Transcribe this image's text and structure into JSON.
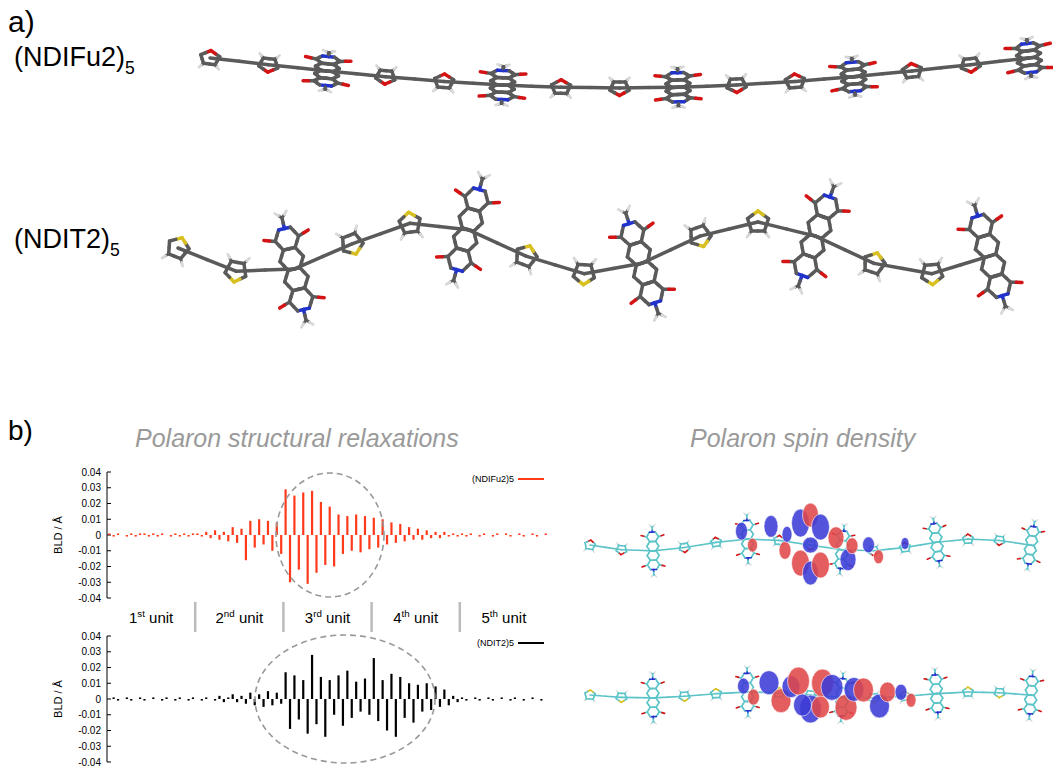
{
  "panel_a": {
    "label": "a)",
    "molecules": [
      {
        "name": "(NDIFu2)5"
      },
      {
        "name": "(NDIT2)5"
      }
    ]
  },
  "panel_b": {
    "label": "b)",
    "left_title": "Polaron structural relaxations",
    "right_title": "Polaron spin density",
    "units": {
      "labels": [
        "1st unit",
        "2nd unit",
        "3rd unit",
        "4th unit",
        "5th unit"
      ],
      "boundaries": [
        19.5,
        39.5,
        59.5,
        79.5
      ]
    }
  },
  "chart_data": [
    {
      "type": "bar",
      "ylabel": "BLD / Å",
      "xlim": [
        -0.5,
        99.5
      ],
      "ylim": [
        -0.04,
        0.04
      ],
      "yticks": [
        -0.04,
        -0.03,
        -0.02,
        -0.01,
        0,
        0.01,
        0.02,
        0.03,
        0.04
      ],
      "grid": false,
      "tick_labels": "y",
      "legend": "top right",
      "series": [
        {
          "name": "(NDIFu2)5",
          "color": "#ff3a1a",
          "x": [
            0,
            1,
            2,
            3,
            4,
            5,
            6,
            7,
            8,
            9,
            10,
            11,
            12,
            13,
            14,
            15,
            16,
            17,
            18,
            19,
            20,
            21,
            22,
            23,
            24,
            25,
            26,
            27,
            28,
            29,
            30,
            31,
            32,
            33,
            34,
            35,
            36,
            37,
            38,
            39,
            40,
            41,
            42,
            43,
            44,
            45,
            46,
            47,
            48,
            49,
            50,
            51,
            52,
            53,
            54,
            55,
            56,
            57,
            58,
            59,
            60,
            61,
            62,
            63,
            64,
            65,
            66,
            67,
            68,
            69,
            70,
            71,
            72,
            73,
            74,
            75,
            76,
            77,
            78,
            79,
            80,
            81,
            82,
            83,
            84,
            85,
            86,
            87,
            88,
            89,
            90,
            91,
            92,
            93,
            94,
            95,
            96,
            97,
            98,
            99
          ],
          "values": [
            0.001,
            -0.001,
            0.001,
            0.0,
            -0.001,
            0.001,
            -0.001,
            0.001,
            0.001,
            -0.001,
            0.001,
            -0.001,
            0.001,
            0.0,
            -0.001,
            0.001,
            -0.001,
            0.001,
            -0.001,
            0.001,
            0.001,
            -0.001,
            0.002,
            -0.002,
            0.003,
            -0.003,
            0.002,
            -0.004,
            0.005,
            -0.005,
            0.004,
            -0.016,
            0.009,
            -0.008,
            0.01,
            -0.006,
            0.009,
            -0.01,
            0.008,
            -0.012,
            0.029,
            -0.03,
            0.025,
            -0.022,
            0.027,
            -0.031,
            0.028,
            -0.024,
            0.021,
            -0.019,
            0.018,
            -0.02,
            0.013,
            -0.012,
            0.012,
            -0.01,
            0.013,
            -0.011,
            0.012,
            -0.009,
            0.011,
            -0.008,
            0.01,
            -0.006,
            0.008,
            -0.005,
            0.007,
            -0.004,
            0.005,
            -0.003,
            0.004,
            -0.003,
            0.003,
            -0.002,
            0.002,
            -0.002,
            0.002,
            -0.001,
            0.001,
            -0.001,
            0.001,
            -0.001,
            0.001,
            0.0,
            -0.001,
            0.001,
            0.0,
            -0.001,
            0.001,
            0.0,
            0.001,
            -0.001,
            0.0,
            0.001,
            -0.001,
            0.0,
            0.001,
            -0.001,
            0.0,
            0.001
          ]
        }
      ]
    },
    {
      "type": "bar",
      "ylabel": "BLD / Å",
      "xlim": [
        -0.5,
        99.5
      ],
      "ylim": [
        -0.04,
        0.04
      ],
      "yticks": [
        -0.04,
        -0.03,
        -0.02,
        -0.01,
        0,
        0.01,
        0.02,
        0.03,
        0.04
      ],
      "grid": false,
      "tick_labels": "y",
      "legend": "top right",
      "series": [
        {
          "name": "(NDIT2)5",
          "color": "#000000",
          "x": [
            0,
            1,
            2,
            3,
            4,
            5,
            6,
            7,
            8,
            9,
            10,
            11,
            12,
            13,
            14,
            15,
            16,
            17,
            18,
            19,
            20,
            21,
            22,
            23,
            24,
            25,
            26,
            27,
            28,
            29,
            30,
            31,
            32,
            33,
            34,
            35,
            36,
            37,
            38,
            39,
            40,
            41,
            42,
            43,
            44,
            45,
            46,
            47,
            48,
            49,
            50,
            51,
            52,
            53,
            54,
            55,
            56,
            57,
            58,
            59,
            60,
            61,
            62,
            63,
            64,
            65,
            66,
            67,
            68,
            69,
            70,
            71,
            72,
            73,
            74,
            75,
            76,
            77,
            78,
            79,
            80,
            81,
            82,
            83,
            84,
            85,
            86,
            87,
            88,
            89,
            90,
            91,
            92,
            93,
            94,
            95,
            96,
            97,
            98,
            99
          ],
          "values": [
            0.0,
            0.001,
            -0.001,
            0.0,
            0.001,
            -0.001,
            0.0,
            0.001,
            -0.001,
            0.0,
            0.001,
            0.0,
            -0.001,
            0.001,
            0.0,
            -0.001,
            0.001,
            0.0,
            -0.001,
            0.001,
            0.0,
            -0.001,
            0.001,
            0.0,
            -0.001,
            0.002,
            -0.002,
            0.001,
            0.003,
            -0.002,
            0.002,
            -0.003,
            0.004,
            -0.004,
            0.003,
            -0.005,
            0.005,
            -0.004,
            0.004,
            -0.003,
            0.017,
            -0.019,
            0.015,
            -0.013,
            0.012,
            -0.022,
            0.028,
            -0.016,
            0.014,
            -0.024,
            0.012,
            -0.01,
            0.015,
            -0.017,
            0.018,
            -0.012,
            0.011,
            -0.008,
            0.013,
            -0.01,
            0.026,
            -0.014,
            0.012,
            -0.02,
            0.016,
            -0.024,
            0.014,
            -0.012,
            0.01,
            -0.015,
            0.009,
            -0.008,
            0.01,
            -0.007,
            0.008,
            -0.005,
            0.006,
            -0.004,
            0.002,
            -0.002,
            0.001,
            -0.001,
            0.0,
            0.001,
            -0.001,
            0.0,
            0.001,
            -0.001,
            0.0,
            0.001,
            0.0,
            -0.001,
            0.001,
            0.0,
            -0.001,
            0.0,
            0.001,
            0.0,
            -0.001,
            0.0
          ]
        }
      ]
    }
  ]
}
